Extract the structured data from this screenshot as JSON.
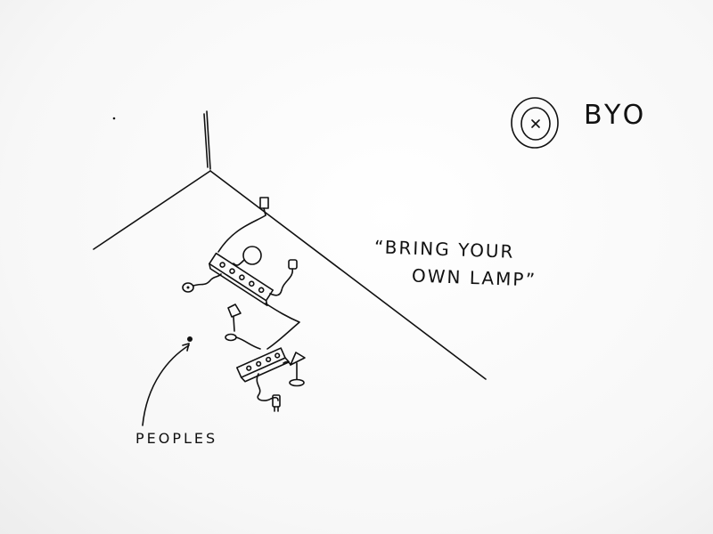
{
  "legend": {
    "label": "BYO"
  },
  "quote": {
    "line1": "“BRING YOUR",
    "line2": "OWN LAMP”"
  },
  "annotation": {
    "label": "PEOPLES"
  }
}
